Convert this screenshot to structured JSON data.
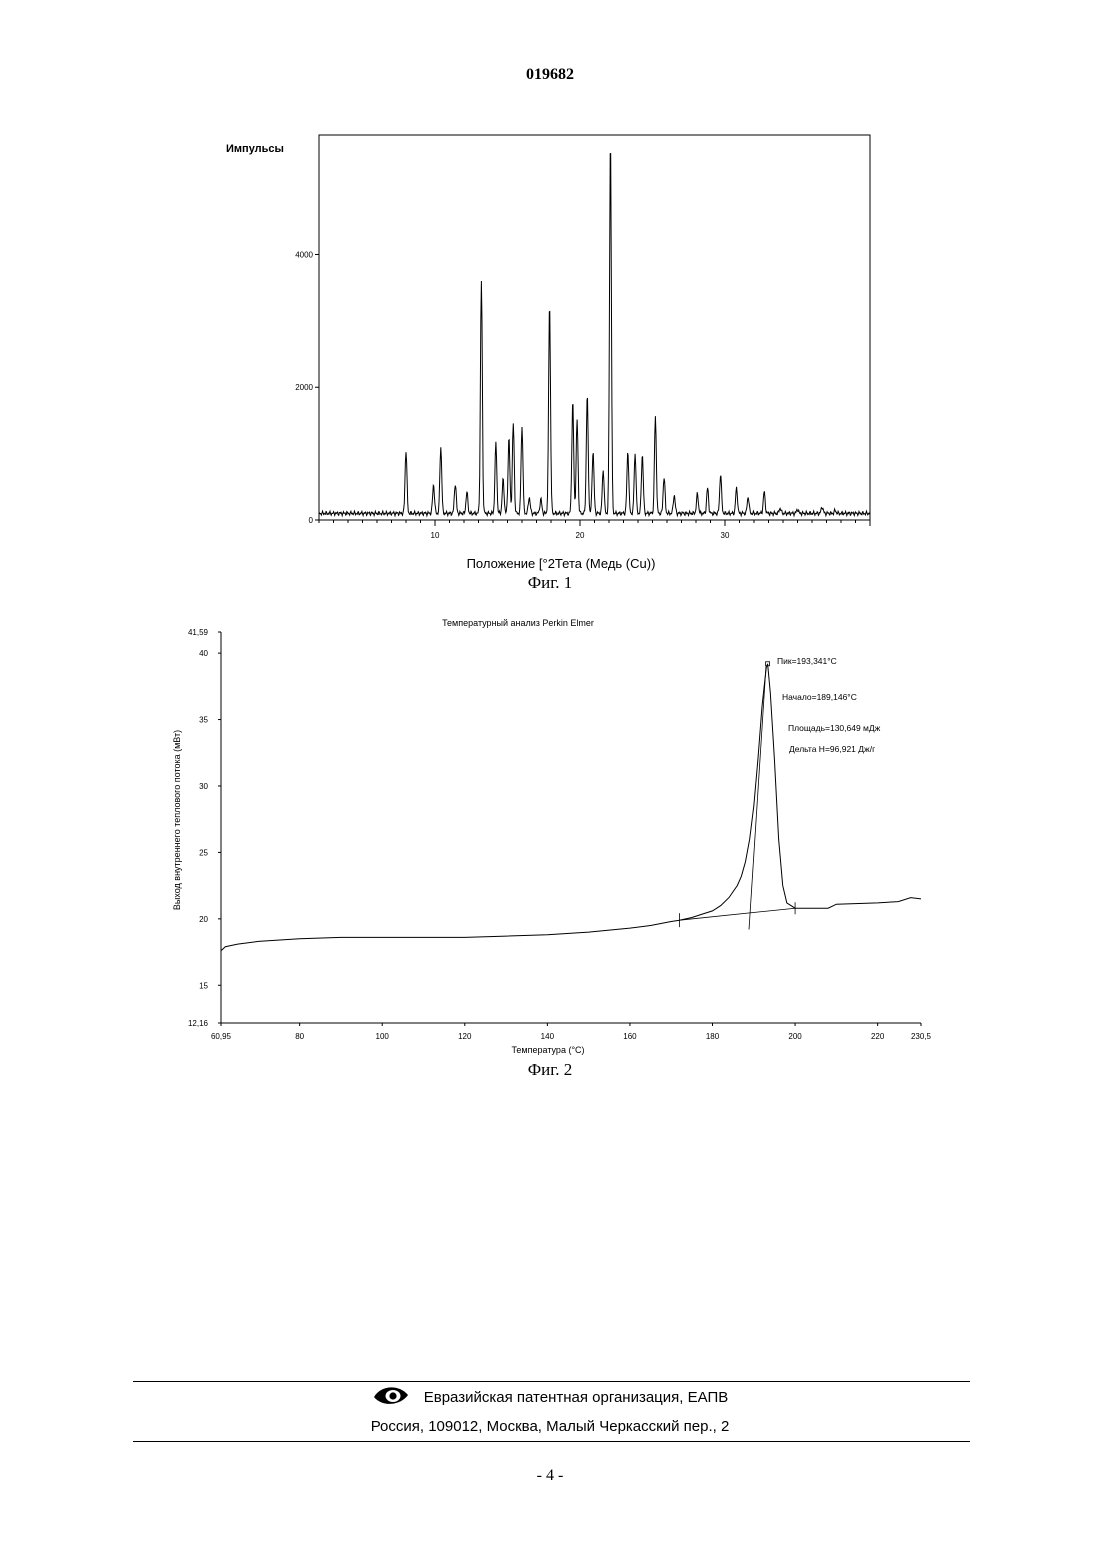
{
  "header": {
    "doc_number": "019682"
  },
  "figure1": {
    "caption": "Фиг. 1",
    "ylabel": "Импульсы",
    "xlabel": "Положение [°2Тета (Медь (Cu))",
    "y_ticks": [
      "0",
      "2000",
      "4000"
    ],
    "x_ticks": [
      "10",
      "20",
      "30"
    ]
  },
  "figure2": {
    "caption": "Фиг. 2",
    "title": "Температурный анализ Perkin Elmer",
    "ylabel": "Выход внутреннего теплового потока (мВт)",
    "xlabel": "Температура (°C)",
    "y_ticks": [
      "41,59",
      "40",
      "35",
      "30",
      "25",
      "20",
      "15",
      "12,16"
    ],
    "x_ticks": [
      "60,95",
      "80",
      "100",
      "120",
      "140",
      "160",
      "180",
      "200",
      "220",
      "230,5"
    ],
    "annotations": {
      "peak": "Пик=193,341°C",
      "onset": "Начало=189,146°C",
      "area": "Площадь=130,649 мДж",
      "delta_h": "Дельта H=96,921 Дж/г"
    }
  },
  "chart_data": [
    {
      "type": "line",
      "title": "",
      "xlabel": "Положение [°2Тета (Медь (Cu))",
      "ylabel": "Импульсы",
      "xlim": [
        2,
        40
      ],
      "ylim": [
        0,
        5800
      ],
      "grid": false,
      "baseline": 100,
      "peaks": [
        {
          "x": 8.0,
          "y": 1050
        },
        {
          "x": 9.9,
          "y": 540
        },
        {
          "x": 10.4,
          "y": 1100
        },
        {
          "x": 11.4,
          "y": 550
        },
        {
          "x": 12.2,
          "y": 420
        },
        {
          "x": 13.2,
          "y": 3600
        },
        {
          "x": 14.2,
          "y": 1150
        },
        {
          "x": 14.7,
          "y": 620
        },
        {
          "x": 15.1,
          "y": 1250
        },
        {
          "x": 15.4,
          "y": 1450
        },
        {
          "x": 16.0,
          "y": 1400
        },
        {
          "x": 16.5,
          "y": 350
        },
        {
          "x": 17.3,
          "y": 320
        },
        {
          "x": 17.9,
          "y": 3300
        },
        {
          "x": 19.5,
          "y": 1800
        },
        {
          "x": 19.8,
          "y": 1500
        },
        {
          "x": 20.5,
          "y": 1900
        },
        {
          "x": 20.9,
          "y": 1050
        },
        {
          "x": 21.6,
          "y": 750
        },
        {
          "x": 22.1,
          "y": 5800
        },
        {
          "x": 23.3,
          "y": 1050
        },
        {
          "x": 23.8,
          "y": 1000
        },
        {
          "x": 24.3,
          "y": 1000
        },
        {
          "x": 25.2,
          "y": 1550
        },
        {
          "x": 25.8,
          "y": 650
        },
        {
          "x": 26.5,
          "y": 380
        },
        {
          "x": 28.1,
          "y": 400
        },
        {
          "x": 28.8,
          "y": 480
        },
        {
          "x": 29.7,
          "y": 700
        },
        {
          "x": 30.8,
          "y": 480
        },
        {
          "x": 31.6,
          "y": 350
        },
        {
          "x": 32.7,
          "y": 430
        },
        {
          "x": 33.8,
          "y": 180
        },
        {
          "x": 35.0,
          "y": 160
        },
        {
          "x": 36.7,
          "y": 200
        },
        {
          "x": 37.6,
          "y": 140
        }
      ]
    },
    {
      "type": "line",
      "title": "Температурный анализ Perkin Elmer",
      "xlabel": "Температура (°C)",
      "ylabel": "Выход внутреннего теплового потока (мВт)",
      "xlim": [
        60.95,
        230.5
      ],
      "ylim": [
        12.16,
        41.59
      ],
      "grid": false,
      "series": [
        {
          "x": [
            60.95,
            62,
            65,
            70,
            80,
            90,
            100,
            110,
            120,
            130,
            140,
            150,
            160,
            165,
            170,
            172,
            175,
            178,
            180,
            182,
            184,
            186,
            187,
            188,
            189,
            190,
            191,
            192,
            193,
            193.34,
            194,
            195,
            196,
            197,
            198,
            200,
            205,
            208,
            210,
            220,
            225,
            228,
            230.5
          ],
          "y": [
            17.6,
            17.9,
            18.1,
            18.3,
            18.5,
            18.6,
            18.6,
            18.6,
            18.6,
            18.7,
            18.8,
            19.0,
            19.3,
            19.5,
            19.8,
            19.9,
            20.1,
            20.4,
            20.6,
            21.0,
            21.6,
            22.5,
            23.2,
            24.3,
            26.0,
            28.5,
            32.0,
            36.0,
            38.9,
            39.2,
            37.0,
            32.0,
            26.0,
            22.5,
            21.2,
            20.8,
            20.8,
            20.8,
            21.1,
            21.2,
            21.3,
            21.6,
            21.5
          ]
        }
      ],
      "baseline": {
        "x": [
          172,
          200
        ],
        "y": [
          19.9,
          20.8
        ]
      },
      "onset_marker": {
        "x": 189.146
      },
      "peak": {
        "x": 193.341,
        "y": 39.2
      }
    }
  ],
  "footer": {
    "org": "Евразийская патентная организация, ЕАПВ",
    "address": "Россия, 109012, Москва, Малый Черкасский пер., 2",
    "page": "- 4 -"
  },
  "icons": {
    "footer_logo": "eapo-eye-logo-icon"
  }
}
